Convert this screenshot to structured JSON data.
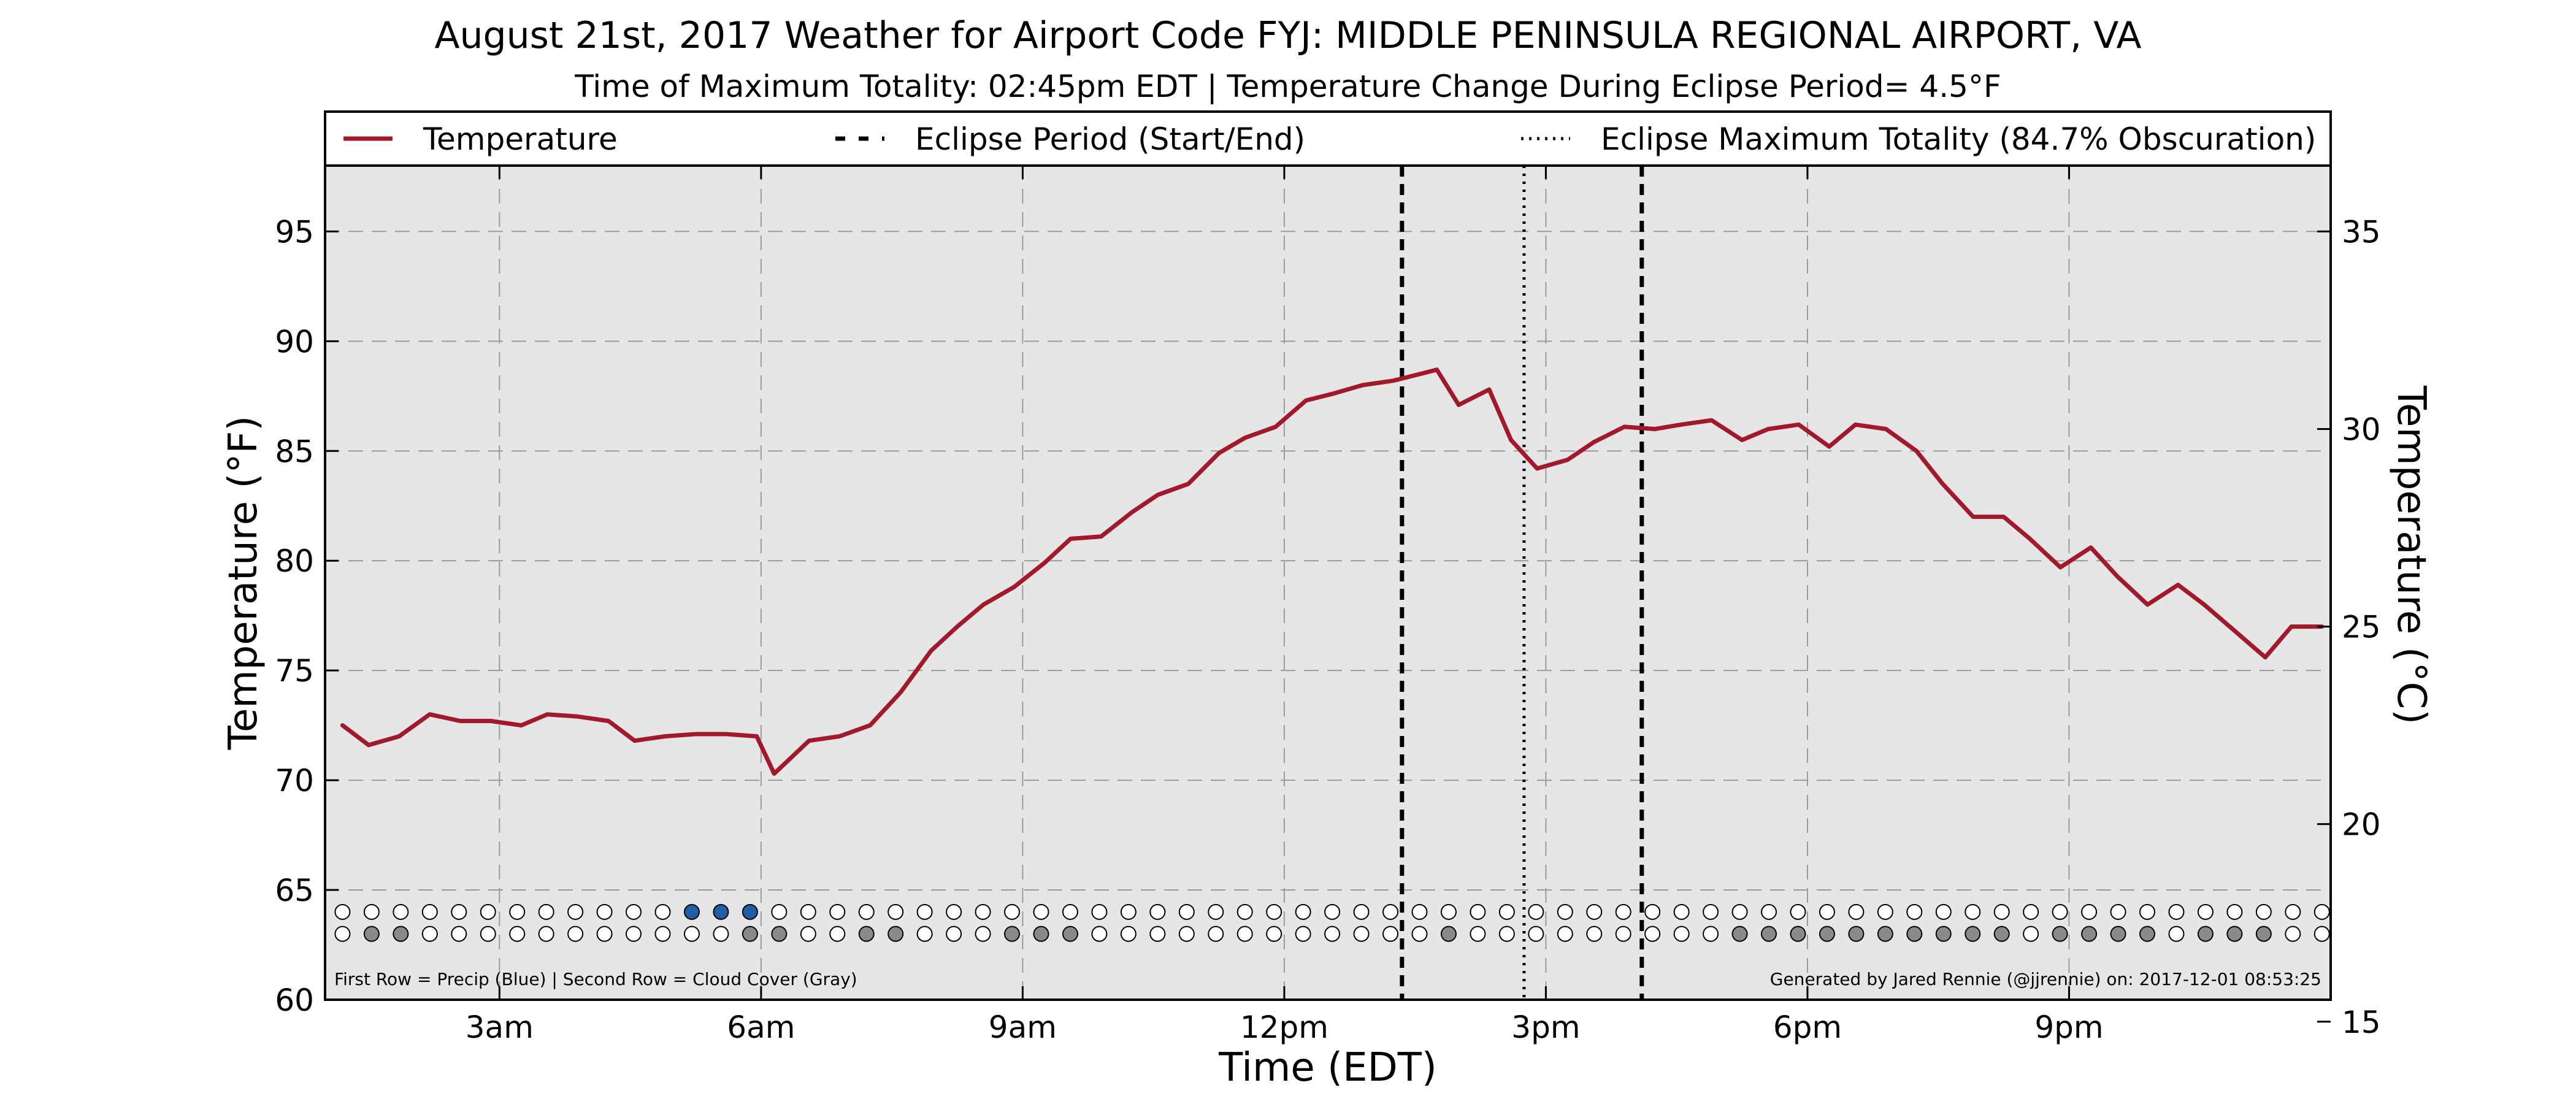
{
  "chart_data": {
    "type": "line",
    "title": "August 21st, 2017 Weather for Airport Code FYJ: MIDDLE PENINSULA REGIONAL AIRPORT, VA",
    "subtitle": "Time of Maximum Totality: 02:45pm EDT | Temperature Change During Eclipse Period= 4.5°F",
    "xlabel": "Time (EDT)",
    "ylabel": "Temperature (°F)",
    "ylabel_right": "Temperature (°C)",
    "xlim": [
      1,
      24
    ],
    "ylim": [
      60,
      98
    ],
    "ylim_right_celsius": [
      15,
      35
    ],
    "x_ticks": [
      {
        "value": 3,
        "label": "3am"
      },
      {
        "value": 6,
        "label": "6am"
      },
      {
        "value": 9,
        "label": "9am"
      },
      {
        "value": 12,
        "label": "12pm"
      },
      {
        "value": 15,
        "label": "3pm"
      },
      {
        "value": 18,
        "label": "6pm"
      },
      {
        "value": 21,
        "label": "9pm"
      }
    ],
    "y_ticks": [
      60,
      65,
      70,
      75,
      80,
      85,
      90,
      95
    ],
    "y_ticks_right": [
      15,
      20,
      25,
      30,
      35
    ],
    "grid": true,
    "legend_position": "top",
    "legend": [
      {
        "label": "Temperature",
        "style": "solid",
        "color": "#a2192b"
      },
      {
        "label": "Eclipse Period (Start/End)",
        "style": "dashed",
        "color": "#000000"
      },
      {
        "label": "Eclipse Maximum Totality (84.7% Obscuration)",
        "style": "dotted",
        "color": "#000000"
      }
    ],
    "eclipse_start": 13.35,
    "eclipse_max": 14.75,
    "eclipse_end": 16.1,
    "series": [
      {
        "name": "Temperature",
        "color": "#a2192b",
        "points": [
          [
            1.2,
            72.5
          ],
          [
            1.5,
            71.6
          ],
          [
            1.85,
            72.0
          ],
          [
            2.2,
            73.0
          ],
          [
            2.55,
            72.7
          ],
          [
            2.9,
            72.7
          ],
          [
            3.25,
            72.5
          ],
          [
            3.55,
            73.0
          ],
          [
            3.9,
            72.9
          ],
          [
            4.25,
            72.7
          ],
          [
            4.55,
            71.8
          ],
          [
            4.9,
            72.0
          ],
          [
            5.25,
            72.1
          ],
          [
            5.6,
            72.1
          ],
          [
            5.95,
            72.0
          ],
          [
            6.15,
            70.3
          ],
          [
            6.55,
            71.8
          ],
          [
            6.9,
            72.0
          ],
          [
            7.25,
            72.5
          ],
          [
            7.6,
            74.0
          ],
          [
            7.95,
            75.9
          ],
          [
            8.25,
            77.0
          ],
          [
            8.55,
            78.0
          ],
          [
            8.9,
            78.8
          ],
          [
            9.25,
            79.9
          ],
          [
            9.55,
            81.0
          ],
          [
            9.9,
            81.1
          ],
          [
            10.25,
            82.2
          ],
          [
            10.55,
            83.0
          ],
          [
            10.9,
            83.5
          ],
          [
            11.25,
            84.9
          ],
          [
            11.55,
            85.6
          ],
          [
            11.9,
            86.1
          ],
          [
            12.25,
            87.3
          ],
          [
            12.55,
            87.6
          ],
          [
            12.9,
            88.0
          ],
          [
            13.25,
            88.2
          ],
          [
            13.55,
            88.5
          ],
          [
            13.75,
            88.7
          ],
          [
            14.0,
            87.1
          ],
          [
            14.35,
            87.8
          ],
          [
            14.6,
            85.5
          ],
          [
            14.9,
            84.2
          ],
          [
            15.25,
            84.6
          ],
          [
            15.55,
            85.4
          ],
          [
            15.9,
            86.1
          ],
          [
            16.25,
            86.0
          ],
          [
            16.55,
            86.2
          ],
          [
            16.9,
            86.4
          ],
          [
            17.25,
            85.5
          ],
          [
            17.55,
            86.0
          ],
          [
            17.9,
            86.2
          ],
          [
            18.25,
            85.2
          ],
          [
            18.55,
            86.2
          ],
          [
            18.9,
            86.0
          ],
          [
            19.25,
            85.0
          ],
          [
            19.55,
            83.5
          ],
          [
            19.9,
            82.0
          ],
          [
            20.25,
            82.0
          ],
          [
            20.55,
            81.0
          ],
          [
            20.9,
            79.7
          ],
          [
            21.25,
            80.6
          ],
          [
            21.55,
            79.3
          ],
          [
            21.9,
            78.0
          ],
          [
            22.25,
            78.9
          ],
          [
            22.55,
            78.0
          ],
          [
            22.9,
            76.8
          ],
          [
            23.25,
            75.6
          ],
          [
            23.55,
            77.0
          ],
          [
            23.9,
            77.0
          ]
        ]
      }
    ],
    "precip_row": {
      "description": "First Row = Precip (Blue) | Second Row = Cloud Cover (Gray)",
      "y_value": 64.0,
      "precip_indices": [
        12,
        13,
        14
      ],
      "precip_color": "#1f5fa8"
    },
    "cloud_row": {
      "y_value": 63.0,
      "filled_indices": [
        1,
        2,
        14,
        15,
        18,
        19,
        23,
        24,
        25,
        38,
        48,
        49,
        50,
        51,
        52,
        53,
        54,
        55,
        56,
        57,
        59,
        60,
        61,
        62,
        64,
        65,
        66
      ],
      "filled_color": "#8a8a8a"
    },
    "dot_slots": 69,
    "footer_left": "First Row = Precip (Blue) | Second Row = Cloud Cover (Gray)",
    "footer_right": "Generated by Jared Rennie (@jjrennie) on: 2017-12-01 08:53:25"
  }
}
